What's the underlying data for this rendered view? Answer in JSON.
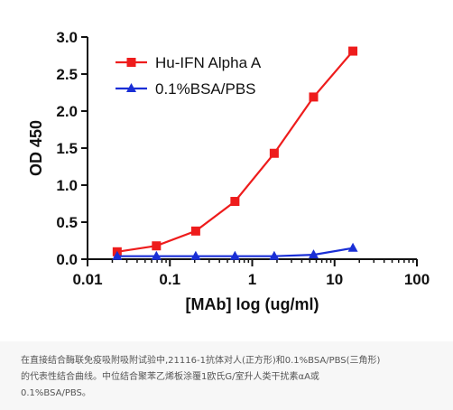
{
  "chart_data": {
    "type": "line",
    "title": "",
    "xlabel": "[MAb] log (ug/ml)",
    "ylabel": "OD 450",
    "x_scale": "log",
    "xlim": [
      0.01,
      100
    ],
    "ylim": [
      0.0,
      3.0
    ],
    "x_ticks": [
      "0.01",
      "0.1",
      "1",
      "10",
      "100"
    ],
    "y_ticks": [
      "0.0",
      "0.5",
      "1.0",
      "1.5",
      "2.0",
      "2.5",
      "3.0"
    ],
    "legend_position": "top-left",
    "series": [
      {
        "name": "Hu-IFN Alpha A",
        "color": "#ee1c1c",
        "marker": "square",
        "x": [
          0.0229,
          0.0686,
          0.206,
          0.617,
          1.85,
          5.56,
          16.7
        ],
        "y": [
          0.1,
          0.18,
          0.38,
          0.78,
          1.43,
          2.19,
          2.81
        ]
      },
      {
        "name": "0.1%BSA/PBS",
        "color": "#1a2fd6",
        "marker": "triangle",
        "x": [
          0.0229,
          0.0686,
          0.206,
          0.617,
          1.85,
          5.56,
          16.7
        ],
        "y": [
          0.04,
          0.04,
          0.04,
          0.04,
          0.04,
          0.06,
          0.15
        ]
      }
    ]
  },
  "caption": "在直接结合酶联免疫吸附吸附试验中,21116-1抗体对人(正方形)和0.1%BSA/PBS(三角形)\n的代表性结合曲线。中位结合聚苯乙烯板涂覆1欧氏G/室升人类干扰素αA或\n0.1%BSA/PBS。"
}
